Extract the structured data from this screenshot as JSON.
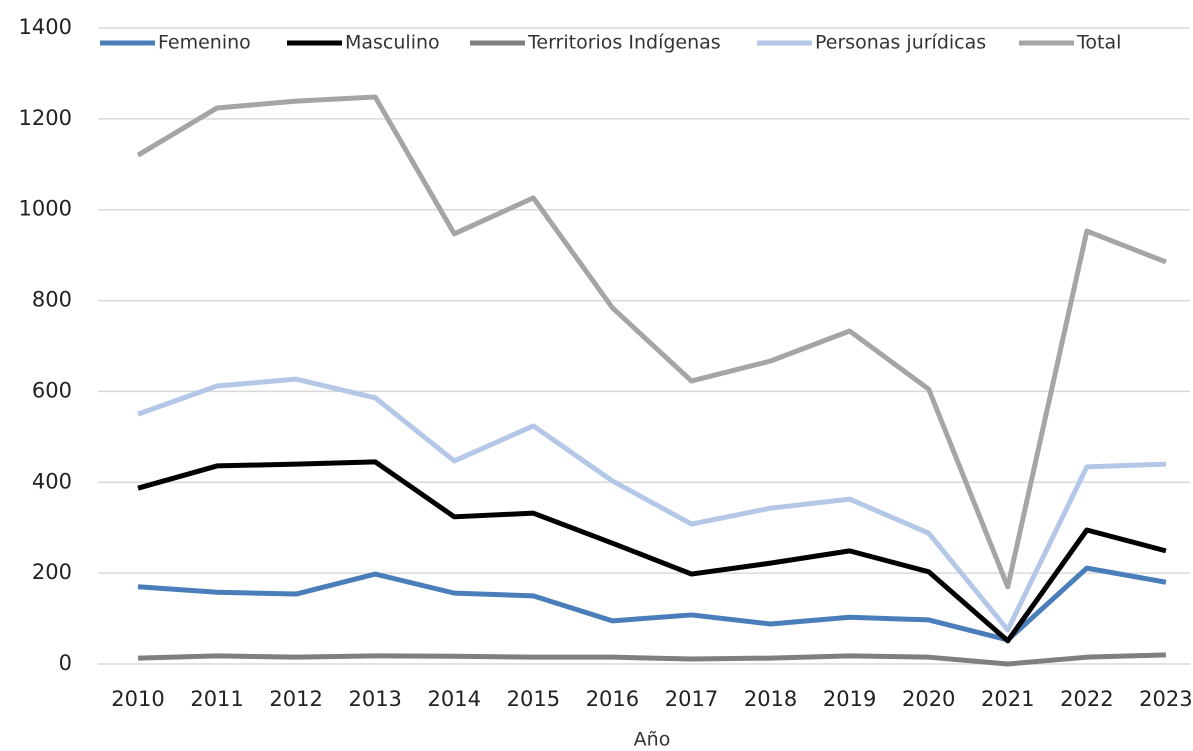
{
  "chart_data": {
    "type": "line",
    "x_label": "Año",
    "categories": [
      "2010",
      "2011",
      "2012",
      "2013",
      "2014",
      "2015",
      "2016",
      "2017",
      "2018",
      "2019",
      "2020",
      "2021",
      "2022",
      "2023"
    ],
    "series": [
      {
        "name": "Femenino",
        "color": "#4a7ebb",
        "values": [
          170,
          158,
          154,
          198,
          156,
          150,
          95,
          108,
          88,
          103,
          97,
          53,
          211,
          180
        ]
      },
      {
        "name": "Masculino",
        "color": "#000000",
        "values": [
          387,
          436,
          440,
          445,
          324,
          332,
          266,
          198,
          222,
          249,
          203,
          51,
          295,
          249
        ]
      },
      {
        "name": "Territorios Indígenas",
        "color": "#7f7f7f",
        "values": [
          13,
          18,
          15,
          18,
          17,
          15,
          15,
          11,
          13,
          18,
          15,
          0,
          15,
          20
        ]
      },
      {
        "name": "Personas jurídicas",
        "color": "#b4c7e7",
        "values": [
          550,
          612,
          627,
          586,
          447,
          524,
          403,
          308,
          343,
          363,
          288,
          75,
          434,
          440
        ]
      },
      {
        "name": "Total",
        "color": "#a5a5a5",
        "values": [
          1120,
          1224,
          1239,
          1248,
          947,
          1026,
          784,
          623,
          667,
          733,
          605,
          170,
          953,
          885
        ]
      }
    ],
    "ylim": [
      0,
      1400
    ],
    "yticks": [
      0,
      200,
      400,
      600,
      800,
      1000,
      1200,
      1400
    ],
    "grid": true,
    "legend": "top"
  }
}
